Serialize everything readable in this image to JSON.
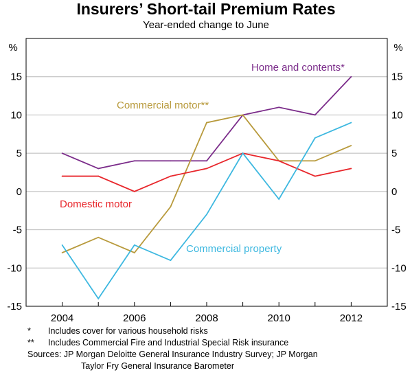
{
  "chart_data": {
    "type": "line",
    "title": "Insurers’ Short-tail Premium Rates",
    "subtitle": "Year-ended change to June",
    "ylabel_left": "%",
    "ylabel_right": "%",
    "x": [
      2004,
      2005,
      2006,
      2007,
      2008,
      2009,
      2010,
      2011,
      2012
    ],
    "xlim": [
      2003,
      2013
    ],
    "ylim": [
      -15,
      20
    ],
    "x_ticks": [
      2004,
      2006,
      2008,
      2010,
      2012
    ],
    "y_ticks": [
      -15,
      -10,
      -5,
      0,
      5,
      10,
      15
    ],
    "series": [
      {
        "name": "Home and contents*",
        "color": "#7b2c8a",
        "values": [
          5,
          3,
          4,
          4,
          4,
          10,
          11,
          10,
          15
        ]
      },
      {
        "name": "Commercial motor**",
        "color": "#b89a3c",
        "values": [
          -8,
          -6,
          -8,
          -2,
          9,
          10,
          4,
          4,
          6
        ]
      },
      {
        "name": "Domestic motor",
        "color": "#e8262b",
        "values": [
          2,
          2,
          0,
          2,
          3,
          5,
          4,
          2,
          3
        ]
      },
      {
        "name": "Commercial property",
        "color": "#3db8e0",
        "values": [
          -7,
          -14,
          -7,
          -9,
          -3,
          5,
          -1,
          7,
          9
        ]
      }
    ]
  },
  "notes": {
    "note1_mark": "*",
    "note1_text": "Includes cover for various household risks",
    "note2_mark": "**",
    "note2_text": "Includes Commercial Fire and Industrial Special Risk insurance",
    "sources_line1": "Sources: JP Morgan Deloitte General Insurance Industry Survey; JP Morgan",
    "sources_line2": "Taylor Fry General Insurance Barometer"
  }
}
